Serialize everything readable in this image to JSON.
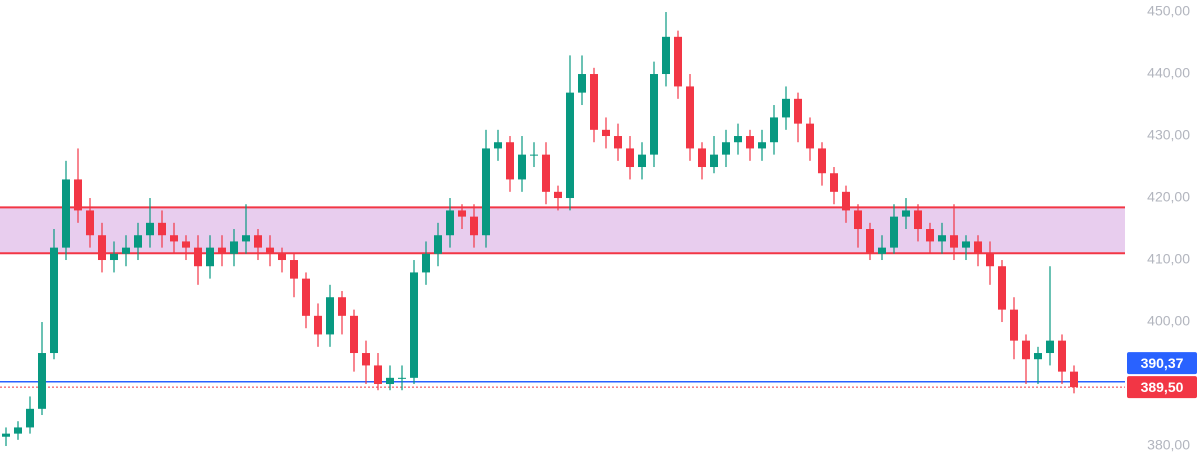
{
  "chart_data": {
    "type": "candlestick",
    "open": [
      381.5,
      382,
      383,
      386,
      395,
      412,
      423,
      418,
      414,
      410,
      411,
      412,
      414,
      416,
      414,
      413,
      412,
      409,
      412,
      411,
      413,
      414,
      412,
      411,
      410,
      407,
      401,
      398,
      404,
      401,
      395,
      393,
      390,
      391,
      391,
      408,
      411,
      414,
      418,
      417,
      414,
      428,
      429,
      423,
      427,
      427,
      421,
      420,
      437,
      440,
      431,
      430,
      428,
      425,
      427,
      440,
      446,
      438,
      428,
      425,
      427,
      429,
      430,
      428,
      429,
      433,
      436,
      432,
      428,
      424,
      421,
      418,
      415,
      411,
      412,
      417,
      418,
      415,
      413,
      414,
      412,
      413,
      411,
      409,
      402,
      397,
      394,
      395,
      397,
      392
    ],
    "high": [
      383,
      384,
      388,
      400,
      415,
      426,
      428,
      420,
      416,
      413,
      414,
      416,
      420,
      418,
      416,
      414,
      414,
      414,
      414,
      415,
      419,
      415,
      414,
      412,
      411,
      408,
      403,
      406,
      405,
      402,
      397,
      395,
      393,
      393,
      410,
      413,
      416,
      420,
      419,
      419,
      431,
      431,
      430,
      430,
      429,
      429,
      422,
      443,
      443,
      441,
      433,
      432,
      430,
      429,
      442,
      450,
      447,
      440,
      429,
      430,
      431,
      432,
      431,
      431,
      435,
      438,
      437,
      433,
      429,
      425,
      422,
      419,
      416,
      414,
      419,
      420,
      419,
      416,
      416,
      419,
      414,
      414,
      413,
      410,
      404,
      398,
      396,
      409,
      398,
      393
    ],
    "low": [
      380,
      381,
      382,
      385,
      394,
      410,
      416,
      412,
      408,
      408,
      409,
      410,
      412,
      412,
      411,
      410,
      406,
      407,
      409,
      409,
      411,
      410,
      409,
      408,
      404,
      399,
      396,
      396,
      398,
      392,
      390,
      389,
      389,
      389,
      390,
      406,
      409,
      412,
      415,
      412,
      412,
      426,
      421,
      421,
      425,
      419,
      418,
      418,
      435,
      429,
      428,
      426,
      423,
      423,
      425,
      438,
      436,
      426,
      423,
      424,
      425,
      427,
      426,
      426,
      427,
      431,
      429,
      426,
      422,
      419,
      416,
      412,
      410,
      410,
      411,
      415,
      413,
      411,
      411,
      410,
      410,
      409,
      406,
      400,
      394,
      390,
      390,
      393,
      390,
      388.5
    ],
    "close": [
      382,
      383,
      386,
      395,
      412,
      423,
      418,
      414,
      410,
      411,
      412,
      414,
      416,
      414,
      413,
      412,
      409,
      412,
      411,
      413,
      414,
      412,
      411,
      410,
      407,
      401,
      398,
      404,
      401,
      395,
      393,
      390,
      391,
      391,
      408,
      411,
      414,
      418,
      417,
      414,
      428,
      429,
      423,
      427,
      427,
      421,
      420,
      437,
      440,
      431,
      430,
      428,
      425,
      427,
      440,
      446,
      438,
      428,
      425,
      427,
      429,
      430,
      428,
      429,
      433,
      436,
      432,
      428,
      424,
      421,
      418,
      415,
      411,
      412,
      417,
      418,
      415,
      413,
      414,
      412,
      413,
      411,
      409,
      402,
      397,
      394,
      395,
      397,
      392,
      389.5
    ],
    "up_color": "#089981",
    "down_color": "#f23645",
    "ylim": [
      376.94,
      451.94
    ],
    "yticks": [
      {
        "value": 380,
        "label": "380,00"
      },
      {
        "value": 390,
        "label": "390,00"
      },
      {
        "value": 400,
        "label": "400,00"
      },
      {
        "value": 410,
        "label": "410,00"
      },
      {
        "value": 420,
        "label": "420,00"
      },
      {
        "value": 430,
        "label": "430,00"
      },
      {
        "value": 440,
        "label": "440,00"
      },
      {
        "value": 450,
        "label": "450,00"
      }
    ],
    "zone": {
      "low": 411.1,
      "high": 418.5,
      "fill": "#e8cdee",
      "line_color": "#f23645"
    },
    "price_lines": [
      {
        "value": 390.37,
        "label": "390,37",
        "color": "#2962ff",
        "style": "solid"
      },
      {
        "value": 389.5,
        "label": "389,50",
        "color": "#f23645",
        "style": "dotted"
      }
    ]
  }
}
